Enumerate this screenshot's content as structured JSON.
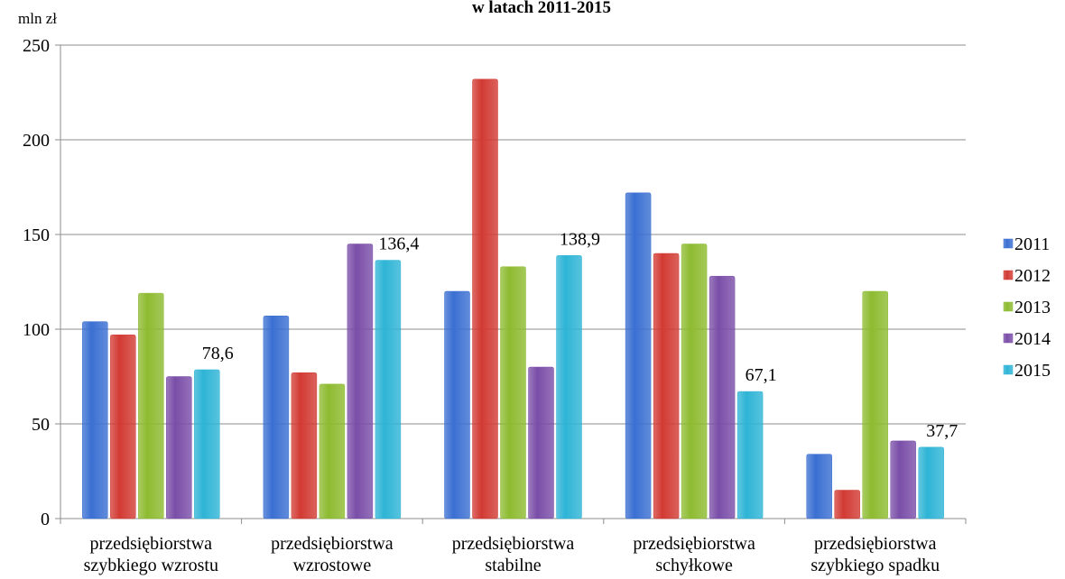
{
  "chart_data": {
    "type": "bar",
    "title": "w latach 2011-2015",
    "y_label": "mln zł",
    "categories": [
      [
        "przedsiębiorstwa",
        "szybkiego wzrostu"
      ],
      [
        "przedsiębiorstwa",
        "wzrostowe"
      ],
      [
        "przedsiębiorstwa",
        "stabilne"
      ],
      [
        "przedsiębiorstwa",
        "schyłkowe"
      ],
      [
        "przedsiębiorstwa",
        "szybkiego spadku"
      ]
    ],
    "series": [
      {
        "name": "2011",
        "color": "#3a6fd2",
        "values": [
          104,
          107,
          120,
          172,
          34
        ]
      },
      {
        "name": "2012",
        "color": "#d23a33",
        "values": [
          97,
          77,
          232,
          140,
          15
        ]
      },
      {
        "name": "2013",
        "color": "#8dbb30",
        "values": [
          119,
          71,
          133,
          145,
          120
        ]
      },
      {
        "name": "2014",
        "color": "#7a4ea8",
        "values": [
          75,
          145,
          80,
          128,
          41
        ]
      },
      {
        "name": "2015",
        "color": "#2eb4d6",
        "values": [
          78.6,
          136.4,
          138.9,
          67.1,
          37.7
        ],
        "value_labels": [
          "78,6",
          "136,4",
          "138,9",
          "67,1",
          "37,7"
        ]
      }
    ],
    "ylim": [
      0,
      250
    ],
    "yticks": [
      0,
      50,
      100,
      150,
      200,
      250
    ],
    "grid": true,
    "legend": "right"
  }
}
